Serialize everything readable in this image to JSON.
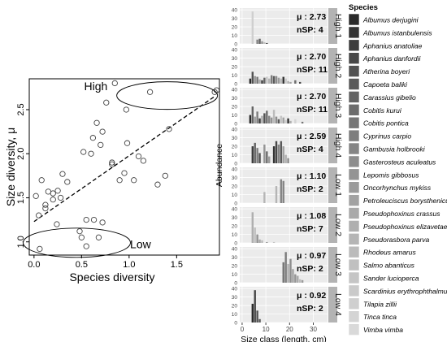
{
  "chart_data": [
    {
      "type": "scatter",
      "xlabel": "Species diversity",
      "ylabel": "Size diversity,  μ",
      "xlim": [
        -0.05,
        1.95
      ],
      "ylim": [
        0.85,
        2.85
      ],
      "xticks": [
        "0.0",
        "0.5",
        "1.0",
        "1.5"
      ],
      "yticks": [
        "1.0",
        "1.5",
        "2.0",
        "2.5"
      ],
      "grid": false,
      "annotations": [
        "High",
        "Low"
      ],
      "regression_line": {
        "x": [
          0.0,
          1.9
        ],
        "y": [
          1.23,
          2.65
        ],
        "style": "dashed"
      },
      "points": {
        "x": [
          0.05,
          0.08,
          0.02,
          0.12,
          0.15,
          0.2,
          0.24,
          0.25,
          0.28,
          0.35,
          0.3,
          0.48,
          0.52,
          0.55,
          0.6,
          0.62,
          0.66,
          0.7,
          0.72,
          0.76,
          0.82,
          0.85,
          0.9,
          0.95,
          0.98,
          0.97,
          1.05,
          1.1,
          1.15,
          1.22,
          1.3,
          1.38,
          1.42,
          0.55,
          0.5,
          0.63,
          0.68,
          0.72,
          0.82,
          0.06,
          0.12,
          0.2,
          1.9,
          1.92
        ],
        "y": [
          1.3,
          1.7,
          1.52,
          1.38,
          1.57,
          1.48,
          1.2,
          1.58,
          1.5,
          1.68,
          1.77,
          1.12,
          2.02,
          1.25,
          2.0,
          2.18,
          2.35,
          2.1,
          2.25,
          2.58,
          1.88,
          2.8,
          1.7,
          1.78,
          2.12,
          2.5,
          1.7,
          1.97,
          1.92,
          2.7,
          1.65,
          1.75,
          2.28,
          0.95,
          1.05,
          1.25,
          1.05,
          1.22,
          1.9,
          0.92,
          1.42,
          1.55,
          2.7,
          2.72
        ]
      }
    },
    {
      "type": "bar",
      "xlabel": "Size class (length, cm)",
      "ylabel": "Abundance",
      "xticks": [
        "0",
        "10",
        "20",
        "30"
      ],
      "yticks": [
        "0",
        "10",
        "20",
        "30",
        "40"
      ],
      "facets": [
        {
          "strip": "High 1",
          "mu": "μ : 2.73",
          "nsp": "nSP: 4"
        },
        {
          "strip": "High 2",
          "mu": "μ : 2.70",
          "nsp": "nSP: 11"
        },
        {
          "strip": "High 3",
          "mu": "μ : 2.70",
          "nsp": "nSP: 11"
        },
        {
          "strip": "High 4",
          "mu": "μ : 2.59",
          "nsp": "nSP: 4"
        },
        {
          "strip": "Low 1",
          "mu": "μ : 1.10",
          "nsp": "nSP: 2"
        },
        {
          "strip": "Low 2",
          "mu": "μ : 1.08",
          "nsp": "nSP: 7"
        },
        {
          "strip": "Low 3",
          "mu": "μ : 0.97",
          "nsp": "nSP: 2"
        },
        {
          "strip": "Low 4",
          "mu": "μ : 0.92",
          "nsp": "nSP: 2"
        }
      ],
      "legend": {
        "title": "Species",
        "entries": [
          {
            "name": "Albumus derjugini",
            "color": "#2a2a2a"
          },
          {
            "name": "Albumus istanbulensis",
            "color": "#333333"
          },
          {
            "name": "Aphanius anatoliae",
            "color": "#3d3d3d"
          },
          {
            "name": "Aphanius danfordii",
            "color": "#474747"
          },
          {
            "name": "Atherina boyeri",
            "color": "#515151"
          },
          {
            "name": "Capoeta baliki",
            "color": "#5a5a5a"
          },
          {
            "name": "Carassius gibelio",
            "color": "#636363"
          },
          {
            "name": "Cobitis kurui",
            "color": "#6c6c6c"
          },
          {
            "name": "Cobitis pontica",
            "color": "#757575"
          },
          {
            "name": "Cyprinus carpio",
            "color": "#7d7d7d"
          },
          {
            "name": "Gambusia holbrooki",
            "color": "#858585"
          },
          {
            "name": "Gasterosteus aculeatus",
            "color": "#8d8d8d"
          },
          {
            "name": "Lepomis gibbosus",
            "color": "#949494"
          },
          {
            "name": "Oncorhynchus mykiss",
            "color": "#9b9b9b"
          },
          {
            "name": "Petroleuciscus borysthenicus",
            "color": "#a2a2a2"
          },
          {
            "name": "Pseudophoxinus crassus",
            "color": "#a9a9a9"
          },
          {
            "name": "Pseudophoxinus elizavetae",
            "color": "#afafaf"
          },
          {
            "name": "Pseudorasbora parva",
            "color": "#b5b5b5"
          },
          {
            "name": "Rhodeus amarus",
            "color": "#bbbbbb"
          },
          {
            "name": "Salmo abanticus",
            "color": "#c0c0c0"
          },
          {
            "name": "Sander lucioperca",
            "color": "#c5c5c5"
          },
          {
            "name": "Scardinius erythrophthalmus",
            "color": "#cacaca"
          },
          {
            "name": "Tilapia zillii",
            "color": "#cfcfcf"
          },
          {
            "name": "Tinca tinca",
            "color": "#d4d4d4"
          },
          {
            "name": "Vimba vimba",
            "color": "#d9d9d9"
          }
        ]
      }
    }
  ]
}
